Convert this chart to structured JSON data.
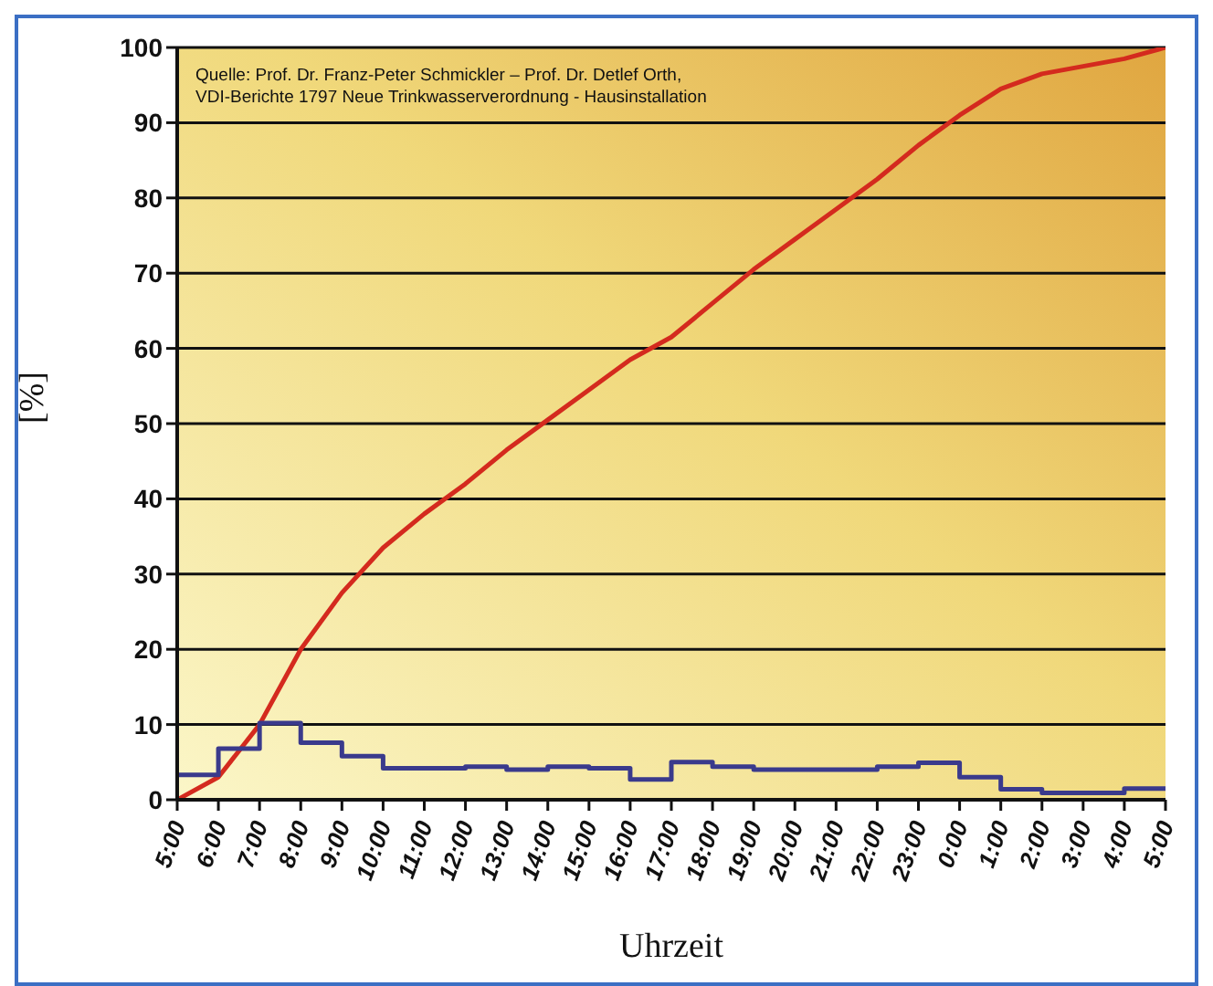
{
  "chart_data": {
    "type": "line",
    "xlabel": "Uhrzeit",
    "ylabel": "[%]",
    "annotations": [
      "Quelle: Prof. Dr. Franz-Peter Schmickler – Prof. Dr. Detlef Orth,",
      "VDI-Berichte 1797 Neue Trinkwasserverordnung - Hausinstallation"
    ],
    "categories": [
      "5:00",
      "6:00",
      "7:00",
      "8:00",
      "9:00",
      "10:00",
      "11:00",
      "12:00",
      "13:00",
      "14:00",
      "15:00",
      "16:00",
      "17:00",
      "18:00",
      "19:00",
      "20:00",
      "21:00",
      "22:00",
      "23:00",
      "0:00",
      "1:00",
      "2:00",
      "3:00",
      "4:00",
      "5:00"
    ],
    "series": [
      {
        "color": "#d42a1e",
        "values": [
          0,
          3,
          10,
          20,
          27.5,
          33.5,
          38,
          42,
          46.5,
          50.5,
          54.5,
          58.5,
          61.5,
          66,
          70.5,
          74.5,
          78.5,
          82.5,
          87,
          91,
          94.5,
          96.5,
          97.5,
          98.5,
          100
        ]
      },
      {
        "type": "step",
        "color": "#3a3a8c",
        "values": [
          3.3,
          6.8,
          10.2,
          7.6,
          5.8,
          4.2,
          4.2,
          4.4,
          4,
          4.4,
          4.2,
          2.7,
          5,
          4.4,
          4,
          4,
          4,
          4.4,
          4.9,
          3,
          1.4,
          0.9,
          0.9,
          1.5,
          1.5
        ]
      }
    ],
    "ylim": [
      0,
      100
    ],
    "yticks": [
      0,
      10,
      20,
      30,
      40,
      50,
      60,
      70,
      80,
      90,
      100
    ],
    "grid": "y",
    "marker": "none",
    "line_style": "solid"
  }
}
